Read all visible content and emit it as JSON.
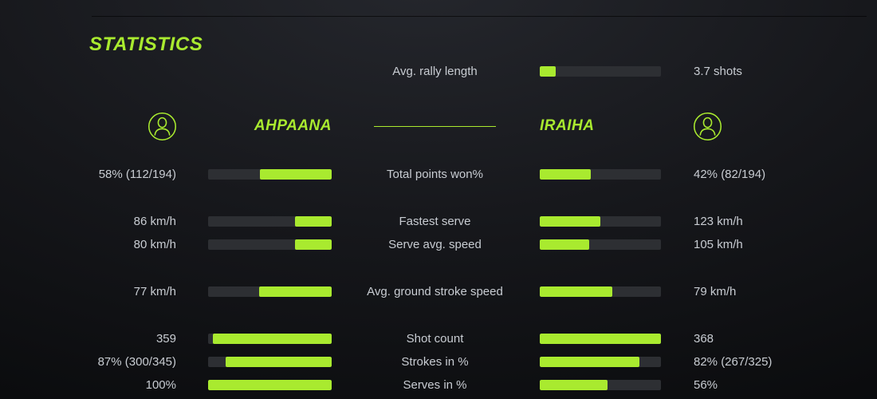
{
  "theme": {
    "accent": "#a9ea2f",
    "track": "#2d2f33",
    "text": "#c8ccd2"
  },
  "title": "STATISTICS",
  "rally": {
    "label": "Avg. rally length",
    "value": "3.7 shots",
    "fill_pct": 13
  },
  "players": {
    "left": {
      "name": "AHPAANA",
      "icon": "person-icon"
    },
    "right": {
      "name": "IRAIHA",
      "icon": "person-icon"
    }
  },
  "stats": [
    {
      "label": "Total points won%",
      "left": {
        "value": "58% (112/194)",
        "fill_pct": 58
      },
      "right": {
        "value": "42% (82/194)",
        "fill_pct": 42
      }
    },
    {
      "label": "Fastest serve",
      "left": {
        "value": "86 km/h",
        "fill_pct": 30
      },
      "right": {
        "value": "123 km/h",
        "fill_pct": 50
      }
    },
    {
      "label": "Serve avg. speed",
      "left": {
        "value": "80 km/h",
        "fill_pct": 30
      },
      "right": {
        "value": "105 km/h",
        "fill_pct": 41
      }
    },
    {
      "label": "Avg. ground stroke speed",
      "left": {
        "value": "77 km/h",
        "fill_pct": 59
      },
      "right": {
        "value": "79 km/h",
        "fill_pct": 60
      }
    },
    {
      "label": "Shot count",
      "left": {
        "value": "359",
        "fill_pct": 96
      },
      "right": {
        "value": "368",
        "fill_pct": 100
      }
    },
    {
      "label": "Strokes in %",
      "left": {
        "value": "87% (300/345)",
        "fill_pct": 86
      },
      "right": {
        "value": "82% (267/325)",
        "fill_pct": 82
      }
    },
    {
      "label": "Serves in %",
      "left": {
        "value": "100%",
        "fill_pct": 100
      },
      "right": {
        "value": "56%",
        "fill_pct": 56
      }
    }
  ]
}
